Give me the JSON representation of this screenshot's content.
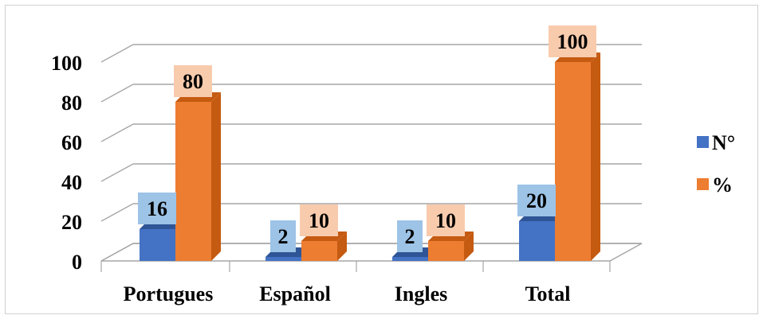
{
  "chart_data": {
    "type": "bar",
    "categories": [
      "Portugues",
      "Español",
      "Ingles",
      "Total"
    ],
    "series": [
      {
        "name": "N°",
        "values": [
          16,
          2,
          2,
          20
        ]
      },
      {
        "name": "%",
        "values": [
          80,
          10,
          10,
          100
        ]
      }
    ],
    "ylim": [
      0,
      100
    ],
    "yticks": [
      0,
      20,
      40,
      60,
      80,
      100
    ],
    "grid": true,
    "legend_position": "right",
    "style": "3d-columns",
    "colors": {
      "series_0": "#4472C4",
      "series_0_side": "#2F5597",
      "series_0_label_bg": "#9DC3E6",
      "series_1": "#ED7D31",
      "series_1_side": "#C55A11",
      "series_1_label_bg": "#F8CBAD",
      "grid": "#a6a6a6",
      "text": "#000000"
    }
  }
}
